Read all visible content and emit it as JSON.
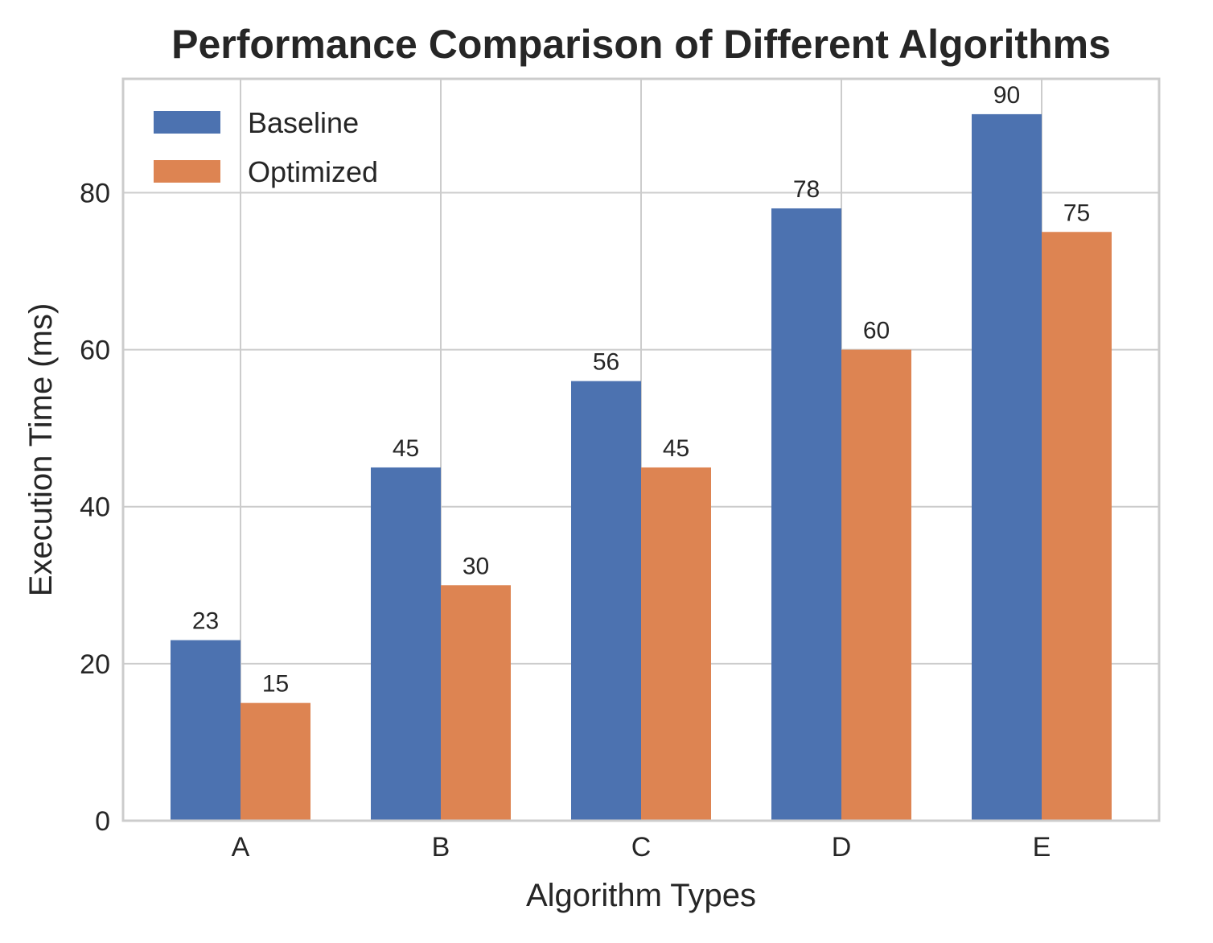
{
  "chart_data": {
    "type": "bar",
    "title": "Performance Comparison of Different Algorithms",
    "xlabel": "Algorithm Types",
    "ylabel": "Execution Time (ms)",
    "categories": [
      "A",
      "B",
      "C",
      "D",
      "E"
    ],
    "series": [
      {
        "name": "Baseline",
        "values": [
          23,
          45,
          56,
          78,
          90
        ],
        "color": "#4c72b0"
      },
      {
        "name": "Optimized",
        "values": [
          15,
          30,
          45,
          60,
          75
        ],
        "color": "#dd8452"
      }
    ],
    "ylim": [
      0,
      94.5
    ],
    "yticks": [
      0,
      20,
      40,
      60,
      80
    ],
    "grid": true,
    "legend_position": "top-left",
    "data_labels": true
  }
}
